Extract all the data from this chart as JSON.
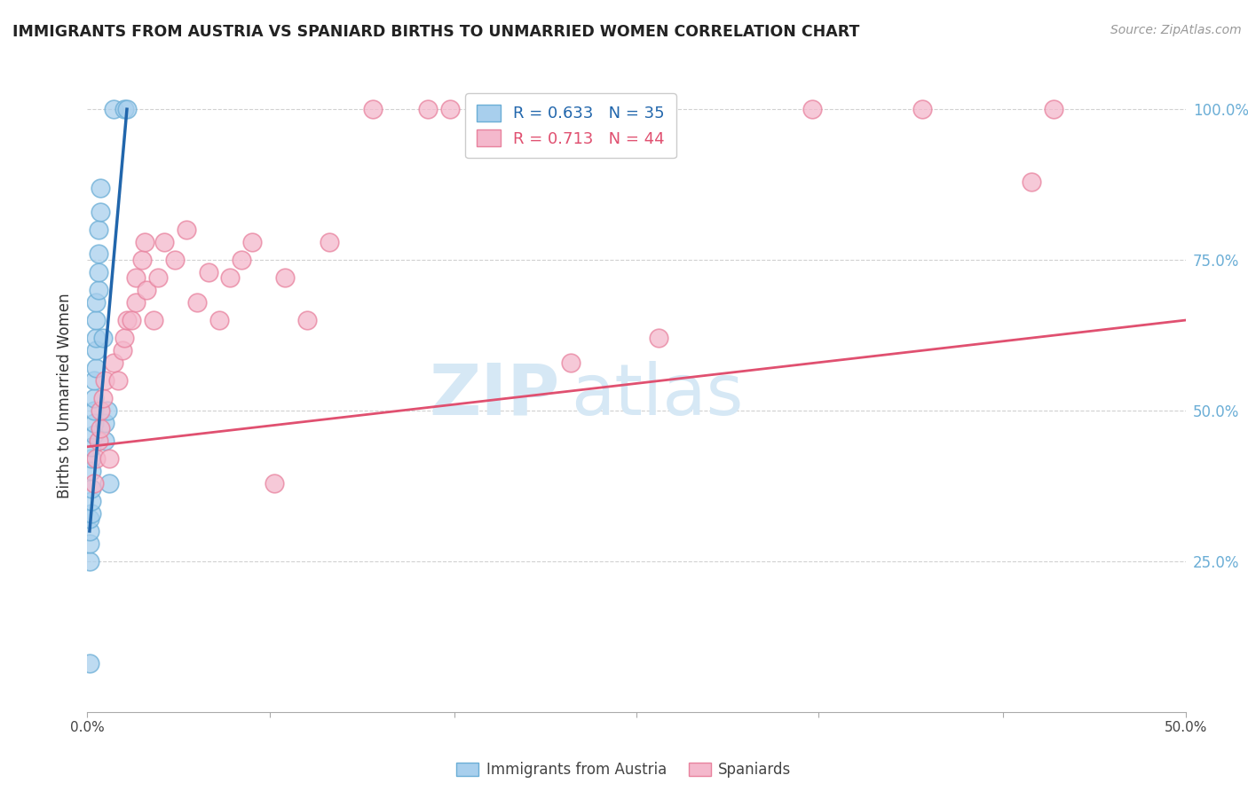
{
  "title": "IMMIGRANTS FROM AUSTRIA VS SPANIARD BIRTHS TO UNMARRIED WOMEN CORRELATION CHART",
  "source": "Source: ZipAtlas.com",
  "ylabel": "Births to Unmarried Women",
  "xlim": [
    0.0,
    0.5
  ],
  "ylim": [
    0.0,
    1.05
  ],
  "xticks": [
    0.0,
    0.083,
    0.167,
    0.25,
    0.333,
    0.417,
    0.5
  ],
  "yticks": [
    0.25,
    0.5,
    0.75,
    1.0
  ],
  "ytick_labels": [
    "25.0%",
    "50.0%",
    "75.0%",
    "100.0%"
  ],
  "xtick_labels": [
    "0.0%",
    "",
    "",
    "",
    "",
    "",
    "50.0%"
  ],
  "blue_color": "#A8CFED",
  "blue_edge": "#6BAED6",
  "pink_color": "#F4B8CC",
  "pink_edge": "#E8829E",
  "blue_line_color": "#2166AC",
  "pink_line_color": "#E05070",
  "grid_color": "#CCCCCC",
  "title_color": "#222222",
  "axis_label_color": "#333333",
  "right_tick_color": "#6BAED6",
  "watermark_main": "ZIP",
  "watermark_sub": "atlas",
  "watermark_color": "#D6E8F5",
  "legend_blue_R": "0.633",
  "legend_blue_N": "35",
  "legend_pink_R": "0.713",
  "legend_pink_N": "44",
  "blue_scatter_x": [
    0.001,
    0.001,
    0.001,
    0.001,
    0.001,
    0.002,
    0.002,
    0.002,
    0.002,
    0.002,
    0.002,
    0.003,
    0.003,
    0.003,
    0.003,
    0.003,
    0.004,
    0.004,
    0.004,
    0.004,
    0.004,
    0.005,
    0.005,
    0.005,
    0.005,
    0.006,
    0.006,
    0.007,
    0.008,
    0.008,
    0.009,
    0.01,
    0.012,
    0.017,
    0.018
  ],
  "blue_scatter_y": [
    0.08,
    0.25,
    0.28,
    0.3,
    0.32,
    0.33,
    0.35,
    0.37,
    0.4,
    0.42,
    0.44,
    0.46,
    0.48,
    0.5,
    0.52,
    0.55,
    0.57,
    0.6,
    0.62,
    0.65,
    0.68,
    0.7,
    0.73,
    0.76,
    0.8,
    0.83,
    0.87,
    0.62,
    0.45,
    0.48,
    0.5,
    0.38,
    1.0,
    1.0,
    1.0
  ],
  "pink_scatter_x": [
    0.003,
    0.004,
    0.005,
    0.006,
    0.006,
    0.007,
    0.008,
    0.01,
    0.012,
    0.014,
    0.016,
    0.017,
    0.018,
    0.02,
    0.022,
    0.022,
    0.025,
    0.026,
    0.027,
    0.03,
    0.032,
    0.035,
    0.04,
    0.045,
    0.05,
    0.055,
    0.06,
    0.065,
    0.07,
    0.075,
    0.085,
    0.09,
    0.1,
    0.11,
    0.13,
    0.155,
    0.165,
    0.2,
    0.22,
    0.26,
    0.33,
    0.38,
    0.43,
    0.44
  ],
  "pink_scatter_y": [
    0.38,
    0.42,
    0.45,
    0.47,
    0.5,
    0.52,
    0.55,
    0.42,
    0.58,
    0.55,
    0.6,
    0.62,
    0.65,
    0.65,
    0.68,
    0.72,
    0.75,
    0.78,
    0.7,
    0.65,
    0.72,
    0.78,
    0.75,
    0.8,
    0.68,
    0.73,
    0.65,
    0.72,
    0.75,
    0.78,
    0.38,
    0.72,
    0.65,
    0.78,
    1.0,
    1.0,
    1.0,
    1.0,
    0.58,
    0.62,
    1.0,
    1.0,
    0.88,
    1.0
  ],
  "blue_line_x": [
    0.001,
    0.018
  ],
  "blue_line_y": [
    0.3,
    1.0
  ],
  "pink_line_x": [
    0.0,
    0.5
  ],
  "pink_line_y": [
    0.44,
    0.65
  ]
}
